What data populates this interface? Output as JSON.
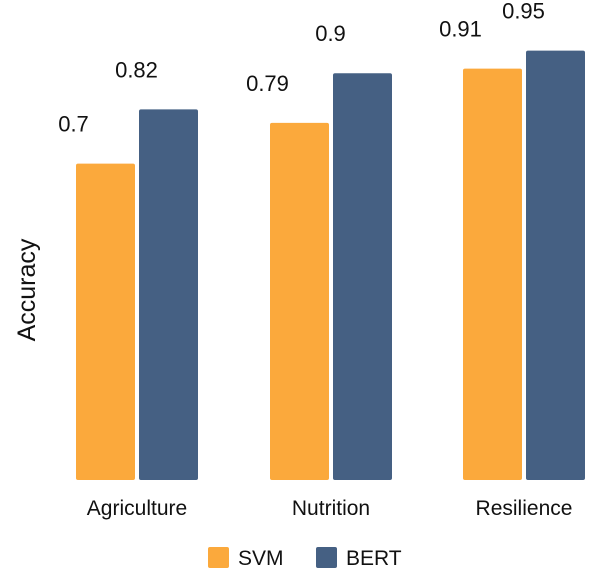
{
  "chart_data": {
    "type": "bar",
    "title": "",
    "xlabel": "",
    "ylabel": "Accuracy",
    "ylim": [
      0,
      1
    ],
    "grid": false,
    "legend_position": "bottom",
    "categories": [
      "Agriculture",
      "Nutrition",
      "Resilience"
    ],
    "series": [
      {
        "name": "SVM",
        "color": "#FBA93C",
        "values": [
          0.7,
          0.79,
          0.91
        ]
      },
      {
        "name": "BERT",
        "color": "#456083",
        "values": [
          0.82,
          0.9,
          0.95
        ]
      }
    ]
  }
}
